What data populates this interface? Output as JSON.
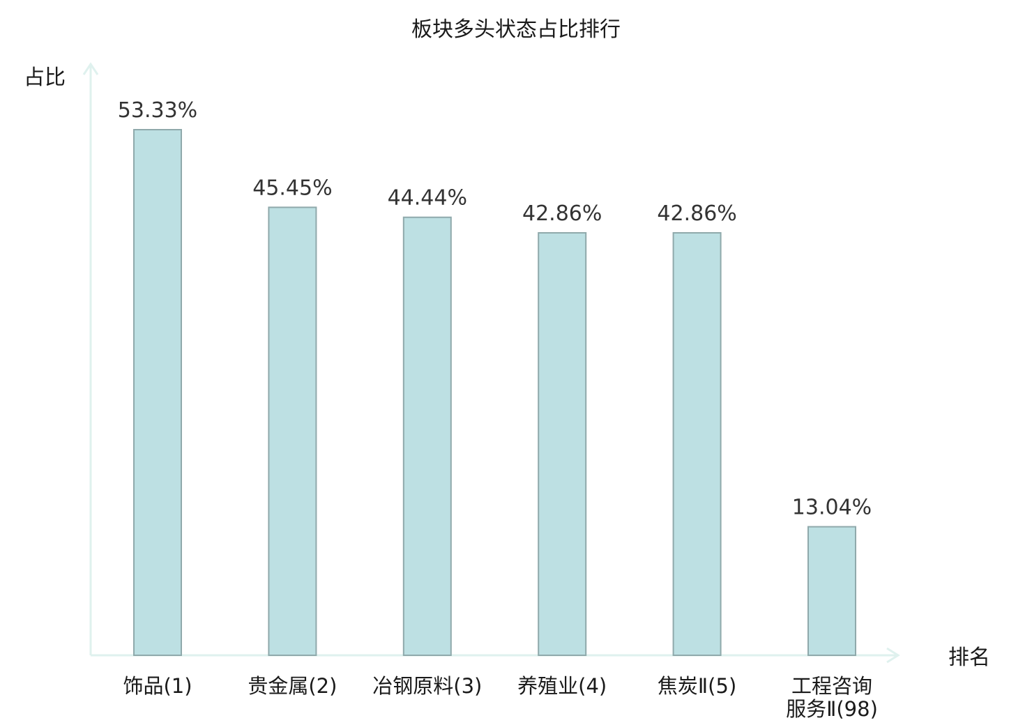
{
  "chart_data": {
    "type": "bar",
    "title": "板块多头状态占比排行",
    "ylabel": "占比",
    "xlabel": "排名",
    "categories": [
      [
        "饰品(1)"
      ],
      [
        "贵金属(2)"
      ],
      [
        "冶钢原料(3)"
      ],
      [
        "养殖业(4)"
      ],
      [
        "焦炭Ⅱ(5)"
      ],
      [
        "工程咨询",
        "服务Ⅱ(98)"
      ]
    ],
    "values": [
      53.33,
      45.45,
      44.44,
      42.86,
      42.86,
      13.04
    ],
    "value_labels": [
      "53.33%",
      "45.45%",
      "44.44%",
      "42.86%",
      "42.86%",
      "13.04%"
    ],
    "highlight_index": 5,
    "ylim": [
      0,
      53.33
    ],
    "grid": false,
    "colors": {
      "bar_fill": "#bde0e3",
      "bar_stroke": "#8fa9ab",
      "axis": "#dff1ee",
      "highlight_text": "#e3131b",
      "text": "#1a1a1a"
    }
  }
}
